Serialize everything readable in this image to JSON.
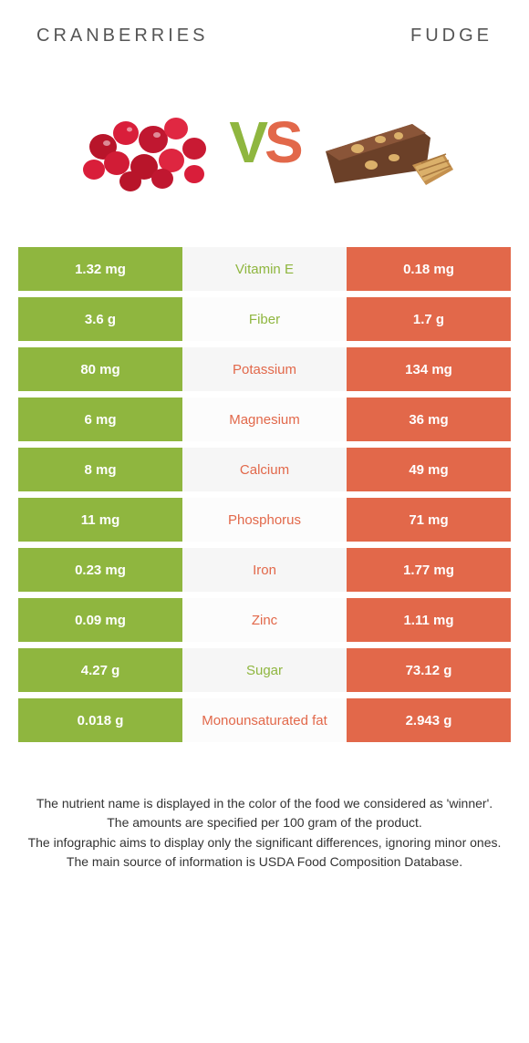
{
  "colors": {
    "left": "#8fb63f",
    "right": "#e2684a",
    "vs_v": "#8fb63f",
    "vs_s": "#e2684a",
    "mid_bg_alt_a": "#f6f6f6",
    "mid_bg_alt_b": "#fcfcfc"
  },
  "header": {
    "left": "CRANBERRIES",
    "right": "FUDGE"
  },
  "vs": {
    "v": "V",
    "s": "S"
  },
  "rows": [
    {
      "left": "1.32 mg",
      "label": "Vitamin E",
      "right": "0.18 mg",
      "winner": "left"
    },
    {
      "left": "3.6 g",
      "label": "Fiber",
      "right": "1.7 g",
      "winner": "left"
    },
    {
      "left": "80 mg",
      "label": "Potassium",
      "right": "134 mg",
      "winner": "right"
    },
    {
      "left": "6 mg",
      "label": "Magnesium",
      "right": "36 mg",
      "winner": "right"
    },
    {
      "left": "8 mg",
      "label": "Calcium",
      "right": "49 mg",
      "winner": "right"
    },
    {
      "left": "11 mg",
      "label": "Phosphorus",
      "right": "71 mg",
      "winner": "right"
    },
    {
      "left": "0.23 mg",
      "label": "Iron",
      "right": "1.77 mg",
      "winner": "right"
    },
    {
      "left": "0.09 mg",
      "label": "Zinc",
      "right": "1.11 mg",
      "winner": "right"
    },
    {
      "left": "4.27 g",
      "label": "Sugar",
      "right": "73.12 g",
      "winner": "left"
    },
    {
      "left": "0.018 g",
      "label": "Monounsaturated fat",
      "right": "2.943 g",
      "winner": "right"
    }
  ],
  "footnotes": [
    "The nutrient name is displayed in the color of the food we considered as 'winner'.",
    "The amounts are specified per 100 gram of the product.",
    "The infographic aims to display only the significant differences, ignoring minor ones.",
    "The main source of information is USDA Food Composition Database."
  ]
}
